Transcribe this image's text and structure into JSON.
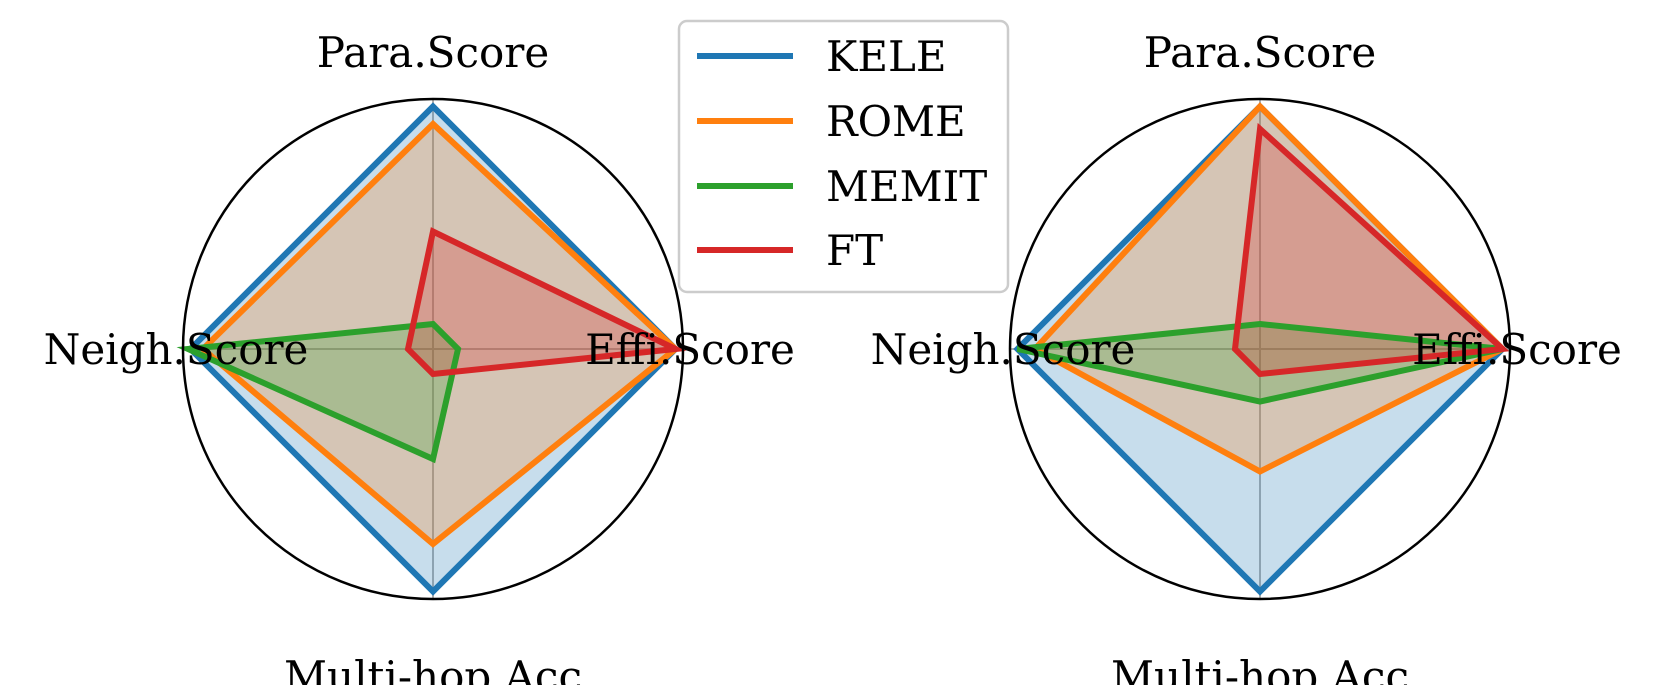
{
  "chart_data": [
    {
      "type": "radar",
      "axes": [
        "Para.Score",
        "Effi.Score",
        "Multi-hop.Acc",
        "Neigh.Score"
      ],
      "rlim": [
        0,
        1
      ],
      "grid": true,
      "series": [
        {
          "name": "KELE",
          "values": [
            0.97,
            0.97,
            0.97,
            0.97
          ]
        },
        {
          "name": "ROME",
          "values": [
            0.9,
            0.97,
            0.78,
            0.92
          ]
        },
        {
          "name": "MEMIT",
          "values": [
            0.1,
            0.1,
            0.44,
            0.98
          ]
        },
        {
          "name": "FT",
          "values": [
            0.47,
            0.97,
            0.1,
            0.1
          ]
        }
      ]
    },
    {
      "type": "radar",
      "axes": [
        "Para.Score",
        "Effi.Score",
        "Multi-hop.Acc",
        "Neigh.Score"
      ],
      "rlim": [
        0,
        1
      ],
      "grid": true,
      "series": [
        {
          "name": "KELE",
          "values": [
            0.97,
            0.97,
            0.97,
            0.97
          ]
        },
        {
          "name": "ROME",
          "values": [
            0.97,
            0.97,
            0.49,
            0.9
          ]
        },
        {
          "name": "MEMIT",
          "values": [
            0.1,
            0.97,
            0.21,
            0.97
          ]
        },
        {
          "name": "FT",
          "values": [
            0.88,
            0.97,
            0.1,
            0.1
          ]
        }
      ]
    }
  ],
  "legend": {
    "position": "upper-center",
    "entries": [
      "KELE",
      "ROME",
      "MEMIT",
      "FT"
    ]
  },
  "colors": {
    "KELE": "#1f77b4",
    "ROME": "#ff7f0e",
    "MEMIT": "#2ca02c",
    "FT": "#d62728"
  }
}
